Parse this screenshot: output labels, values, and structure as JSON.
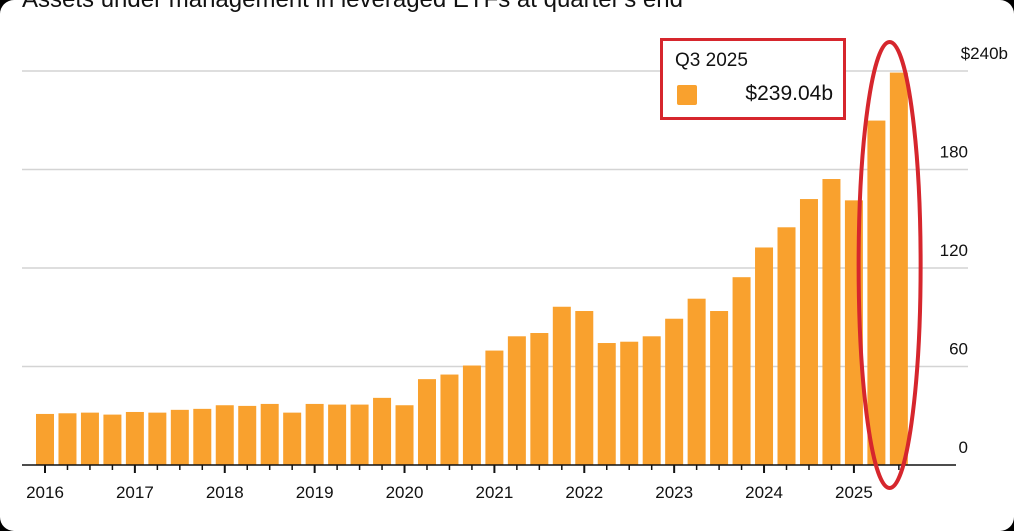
{
  "chart_data": {
    "type": "bar",
    "title": "Assets under management in leveraged ETFs at quarter's end",
    "categories": [
      "Q1 2016",
      "Q2 2016",
      "Q3 2016",
      "Q4 2016",
      "Q1 2017",
      "Q2 2017",
      "Q3 2017",
      "Q4 2017",
      "Q1 2018",
      "Q2 2018",
      "Q3 2018",
      "Q4 2018",
      "Q1 2019",
      "Q2 2019",
      "Q3 2019",
      "Q4 2019",
      "Q1 2020",
      "Q2 2020",
      "Q3 2020",
      "Q4 2020",
      "Q1 2021",
      "Q2 2021",
      "Q3 2021",
      "Q4 2021",
      "Q1 2022",
      "Q2 2022",
      "Q3 2022",
      "Q4 2022",
      "Q1 2023",
      "Q2 2023",
      "Q3 2023",
      "Q4 2023",
      "Q1 2024",
      "Q2 2024",
      "Q3 2024",
      "Q4 2024",
      "Q1 2025",
      "Q2 2025",
      "Q3 2025"
    ],
    "values": [
      31.1,
      31.5,
      31.9,
      30.7,
      32.3,
      31.9,
      33.6,
      34.2,
      36.4,
      36.0,
      37.2,
      31.9,
      37.2,
      36.8,
      36.8,
      40.9,
      36.4,
      52.3,
      55.1,
      60.6,
      69.7,
      78.4,
      80.4,
      96.4,
      93.8,
      74.3,
      75.1,
      78.4,
      89.1,
      101.3,
      93.8,
      114.4,
      132.5,
      144.8,
      162.0,
      174.2,
      161.2,
      209.8,
      239.04
    ],
    "x_tick_labels": [
      "2016",
      "2017",
      "2018",
      "2019",
      "2020",
      "2021",
      "2022",
      "2023",
      "2024",
      "2025"
    ],
    "y_ticks": [
      0,
      60,
      120,
      180,
      240
    ],
    "y_tick_labels": [
      "0",
      "60",
      "120",
      "180",
      "$240b"
    ],
    "ylim": [
      0,
      240
    ],
    "y_axis_side": "right",
    "grid": true,
    "bar_color": "#f9a12e",
    "highlight_color": "#d6262d",
    "legend": {
      "period": "Q3 2025",
      "value": "$239.04b"
    }
  }
}
